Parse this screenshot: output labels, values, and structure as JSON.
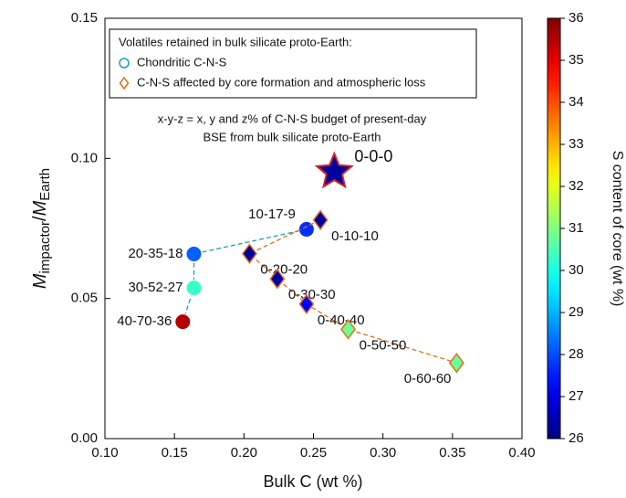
{
  "chart_data": {
    "type": "scatter",
    "xlabel": "Bulk C (wt %)",
    "ylabel_parts": [
      "M",
      "impactor",
      "/",
      "M",
      "Earth"
    ],
    "clabel": "S content of core (wt %)",
    "xlim": [
      0.1,
      0.4
    ],
    "xticks": [
      {
        "value": 0.1,
        "label": "0.10"
      },
      0.15,
      {
        "value": 0.2,
        "label": "0.20"
      },
      0.25,
      {
        "value": 0.3,
        "label": "0.30"
      },
      0.35,
      {
        "value": 0.4,
        "label": "0.40"
      }
    ],
    "ylim": [
      0.0,
      0.15
    ],
    "yticks": [
      {
        "value": 0,
        "label": "0.00"
      },
      0.05,
      {
        "value": 0.1,
        "label": "0.10"
      },
      0.15
    ],
    "clim": [
      26,
      36
    ],
    "cticks": [
      26,
      27,
      28,
      29,
      30,
      31,
      32,
      33,
      34,
      35,
      36
    ],
    "colormap": "jet",
    "legend_title": "Volatiles retained in bulk silicate proto-Earth:",
    "annotation": [
      "x-y-z = x, y and z% of C-N-S budget of present-day",
      "BSE from bulk silicate proto-Earth"
    ],
    "series": [
      {
        "name": "Chondritic C-N-S",
        "marker": "circle",
        "color": "#1aa0b8",
        "labels": [
          "10-17-9",
          "20-35-18",
          "30-52-27",
          "40-70-36"
        ],
        "x": [
          0.245,
          0.164,
          0.164,
          0.156
        ],
        "values": [
          0.0747,
          0.0659,
          0.0538,
          0.0417
        ],
        "c": [
          27.7,
          28.2,
          30.3,
          35.5
        ]
      },
      {
        "name": "C-N-S affected by core formation and atmospheric loss",
        "marker": "diamond",
        "color": "#e0701e",
        "labels": [
          "0-10-10",
          "0-20-20",
          "0-30-30",
          "0-40-40",
          "0-50-50",
          "0-60-60"
        ],
        "x": [
          0.255,
          0.204,
          0.224,
          0.245,
          0.275,
          0.353
        ],
        "values": [
          0.078,
          0.066,
          0.057,
          0.048,
          0.039,
          0.027
        ],
        "c": [
          26.3,
          26.3,
          26.4,
          27.2,
          30.8,
          30.8
        ]
      }
    ],
    "highlight": {
      "label": "0-0-0",
      "x": 0.265,
      "y": 0.0952,
      "c": 26.3,
      "color": "#d62020"
    }
  }
}
